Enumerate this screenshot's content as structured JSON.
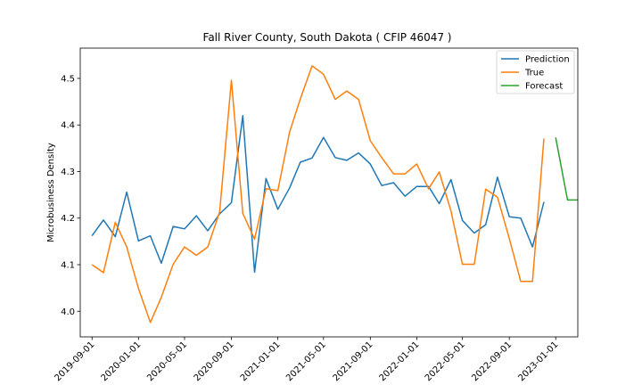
{
  "chart_data": {
    "type": "line",
    "title": "Fall River County, South Dakota ( CFIP 46047 )",
    "xlabel": "",
    "ylabel": "Microbusiness Density",
    "xlim": [
      "2019-08-01",
      "2023-02-28"
    ],
    "ylim": [
      3.945,
      4.565
    ],
    "xticks": [
      "2019-09-01",
      "2020-01-01",
      "2020-05-01",
      "2020-09-01",
      "2021-01-01",
      "2021-05-01",
      "2021-09-01",
      "2022-01-01",
      "2022-05-01",
      "2022-09-01",
      "2023-01-01"
    ],
    "yticks": [
      4.0,
      4.1,
      4.2,
      4.3,
      4.4,
      4.5
    ],
    "legend_position": "top-right",
    "grid": false,
    "series": [
      {
        "name": "Prediction",
        "color": "#1f77b4",
        "points": [
          [
            "2019-09-01",
            4.162
          ],
          [
            "2019-10-01",
            4.196
          ],
          [
            "2019-11-01",
            4.16
          ],
          [
            "2019-12-01",
            4.256
          ],
          [
            "2020-01-01",
            4.151
          ],
          [
            "2020-02-01",
            4.162
          ],
          [
            "2020-03-01",
            4.103
          ],
          [
            "2020-04-01",
            4.182
          ],
          [
            "2020-05-01",
            4.177
          ],
          [
            "2020-06-01",
            4.205
          ],
          [
            "2020-07-01",
            4.173
          ],
          [
            "2020-08-01",
            4.209
          ],
          [
            "2020-09-01",
            4.233
          ],
          [
            "2020-10-01",
            4.42
          ],
          [
            "2020-11-01",
            4.084
          ],
          [
            "2020-12-01",
            4.285
          ],
          [
            "2021-01-01",
            4.219
          ],
          [
            "2021-02-01",
            4.265
          ],
          [
            "2021-03-01",
            4.32
          ],
          [
            "2021-04-01",
            4.329
          ],
          [
            "2021-05-01",
            4.373
          ],
          [
            "2021-06-01",
            4.33
          ],
          [
            "2021-07-01",
            4.324
          ],
          [
            "2021-08-01",
            4.34
          ],
          [
            "2021-09-01",
            4.316
          ],
          [
            "2021-10-01",
            4.27
          ],
          [
            "2021-11-01",
            4.276
          ],
          [
            "2021-12-01",
            4.247
          ],
          [
            "2022-01-01",
            4.268
          ],
          [
            "2022-02-01",
            4.268
          ],
          [
            "2022-03-01",
            4.231
          ],
          [
            "2022-04-01",
            4.283
          ],
          [
            "2022-05-01",
            4.195
          ],
          [
            "2022-06-01",
            4.168
          ],
          [
            "2022-07-01",
            4.186
          ],
          [
            "2022-08-01",
            4.288
          ],
          [
            "2022-09-01",
            4.203
          ],
          [
            "2022-10-01",
            4.2
          ],
          [
            "2022-11-01",
            4.138
          ],
          [
            "2022-12-01",
            4.235
          ]
        ]
      },
      {
        "name": "True",
        "color": "#ff7f0e",
        "points": [
          [
            "2019-09-01",
            4.1
          ],
          [
            "2019-10-01",
            4.083
          ],
          [
            "2019-11-01",
            4.191
          ],
          [
            "2019-12-01",
            4.138
          ],
          [
            "2020-01-01",
            4.049
          ],
          [
            "2020-02-01",
            3.976
          ],
          [
            "2020-03-01",
            4.03
          ],
          [
            "2020-04-01",
            4.101
          ],
          [
            "2020-05-01",
            4.138
          ],
          [
            "2020-06-01",
            4.12
          ],
          [
            "2020-07-01",
            4.138
          ],
          [
            "2020-08-01",
            4.213
          ],
          [
            "2020-09-01",
            4.496
          ],
          [
            "2020-10-01",
            4.21
          ],
          [
            "2020-11-01",
            4.155
          ],
          [
            "2020-12-01",
            4.263
          ],
          [
            "2021-01-01",
            4.259
          ],
          [
            "2021-02-01",
            4.385
          ],
          [
            "2021-03-01",
            4.456
          ],
          [
            "2021-04-01",
            4.527
          ],
          [
            "2021-05-01",
            4.509
          ],
          [
            "2021-06-01",
            4.455
          ],
          [
            "2021-07-01",
            4.473
          ],
          [
            "2021-08-01",
            4.455
          ],
          [
            "2021-09-01",
            4.366
          ],
          [
            "2021-10-01",
            4.33
          ],
          [
            "2021-11-01",
            4.295
          ],
          [
            "2021-12-01",
            4.295
          ],
          [
            "2022-01-01",
            4.316
          ],
          [
            "2022-02-01",
            4.263
          ],
          [
            "2022-03-01",
            4.299
          ],
          [
            "2022-04-01",
            4.215
          ],
          [
            "2022-05-01",
            4.101
          ],
          [
            "2022-06-01",
            4.101
          ],
          [
            "2022-07-01",
            4.262
          ],
          [
            "2022-08-01",
            4.245
          ],
          [
            "2022-09-01",
            4.156
          ],
          [
            "2022-10-01",
            4.064
          ],
          [
            "2022-11-01",
            4.064
          ],
          [
            "2022-12-01",
            4.371
          ]
        ]
      },
      {
        "name": "Forecast",
        "color": "#2ca02c",
        "points": [
          [
            "2023-01-01",
            4.373
          ],
          [
            "2023-02-01",
            4.239
          ],
          [
            "2023-03-01",
            4.239
          ]
        ]
      }
    ]
  }
}
